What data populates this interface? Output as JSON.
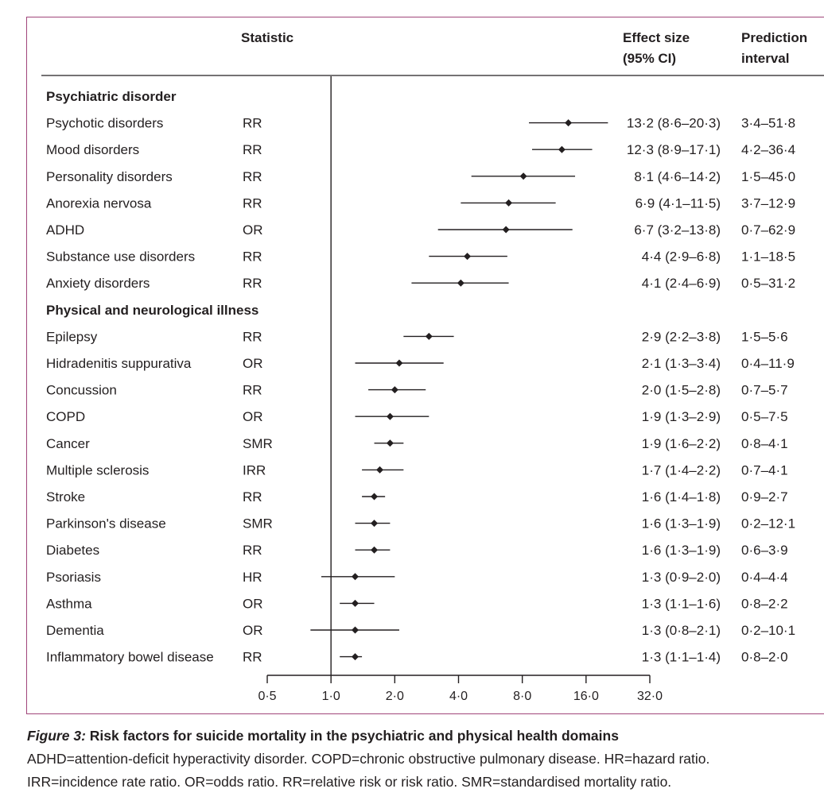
{
  "headers": {
    "statistic": "Statistic",
    "effect_size": [
      "Effect size",
      "(95% CI)"
    ],
    "prediction_interval": [
      "Prediction",
      "interval"
    ]
  },
  "chart_data": {
    "type": "forest",
    "x_scale": "log2",
    "xlim": [
      0.5,
      32
    ],
    "reference_line": 1.0,
    "x_ticks": [
      0.5,
      1,
      2,
      4,
      8,
      16,
      32
    ],
    "x_tick_labels": [
      "0·5",
      "1·0",
      "2·0",
      "4·0",
      "8·0",
      "16·0",
      "32·0"
    ],
    "groups": [
      {
        "title": "Psychiatric disorder",
        "rows": [
          {
            "label": "Psychotic disorders",
            "stat": "RR",
            "est": 13.2,
            "lo": 8.6,
            "hi": 20.3,
            "ci_text": "13·2 (8·6–20·3)",
            "pi_text": "3·4–51·8"
          },
          {
            "label": "Mood disorders",
            "stat": "RR",
            "est": 12.3,
            "lo": 8.9,
            "hi": 17.1,
            "ci_text": "12·3 (8·9–17·1)",
            "pi_text": "4·2–36·4"
          },
          {
            "label": "Personality disorders",
            "stat": "RR",
            "est": 8.1,
            "lo": 4.6,
            "hi": 14.2,
            "ci_text": "8·1 (4·6–14·2)",
            "pi_text": "1·5–45·0"
          },
          {
            "label": "Anorexia nervosa",
            "stat": "RR",
            "est": 6.9,
            "lo": 4.1,
            "hi": 11.5,
            "ci_text": "6·9 (4·1–11·5)",
            "pi_text": "3·7–12·9"
          },
          {
            "label": "ADHD",
            "stat": "OR",
            "est": 6.7,
            "lo": 3.2,
            "hi": 13.8,
            "ci_text": "6·7 (3·2–13·8)",
            "pi_text": "0·7–62·9"
          },
          {
            "label": "Substance use disorders",
            "stat": "RR",
            "est": 4.4,
            "lo": 2.9,
            "hi": 6.8,
            "ci_text": "4·4 (2·9–6·8)",
            "pi_text": "1·1–18·5"
          },
          {
            "label": "Anxiety disorders",
            "stat": "RR",
            "est": 4.1,
            "lo": 2.4,
            "hi": 6.9,
            "ci_text": "4·1 (2·4–6·9)",
            "pi_text": "0·5–31·2"
          }
        ]
      },
      {
        "title": "Physical and neurological illness",
        "rows": [
          {
            "label": "Epilepsy",
            "stat": "RR",
            "est": 2.9,
            "lo": 2.2,
            "hi": 3.8,
            "ci_text": "2·9 (2·2–3·8)",
            "pi_text": "1·5–5·6"
          },
          {
            "label": "Hidradenitis suppurativa",
            "stat": "OR",
            "est": 2.1,
            "lo": 1.3,
            "hi": 3.4,
            "ci_text": "2·1 (1·3–3·4)",
            "pi_text": "0·4–11·9"
          },
          {
            "label": "Concussion",
            "stat": "RR",
            "est": 2.0,
            "lo": 1.5,
            "hi": 2.8,
            "ci_text": "2·0 (1·5–2·8)",
            "pi_text": "0·7–5·7"
          },
          {
            "label": "COPD",
            "stat": "OR",
            "est": 1.9,
            "lo": 1.3,
            "hi": 2.9,
            "ci_text": "1·9 (1·3–2·9)",
            "pi_text": "0·5–7·5"
          },
          {
            "label": "Cancer",
            "stat": "SMR",
            "est": 1.9,
            "lo": 1.6,
            "hi": 2.2,
            "ci_text": "1·9 (1·6–2·2)",
            "pi_text": "0·8–4·1"
          },
          {
            "label": "Multiple sclerosis",
            "stat": "IRR",
            "est": 1.7,
            "lo": 1.4,
            "hi": 2.2,
            "ci_text": "1·7 (1·4–2·2)",
            "pi_text": "0·7–4·1"
          },
          {
            "label": "Stroke",
            "stat": "RR",
            "est": 1.6,
            "lo": 1.4,
            "hi": 1.8,
            "ci_text": "1·6 (1·4–1·8)",
            "pi_text": "0·9–2·7"
          },
          {
            "label": "Parkinson's disease",
            "stat": "SMR",
            "est": 1.6,
            "lo": 1.3,
            "hi": 1.9,
            "ci_text": "1·6 (1·3–1·9)",
            "pi_text": "0·2–12·1"
          },
          {
            "label": "Diabetes",
            "stat": "RR",
            "est": 1.6,
            "lo": 1.3,
            "hi": 1.9,
            "ci_text": "1·6 (1·3–1·9)",
            "pi_text": "0·6–3·9"
          },
          {
            "label": "Psoriasis",
            "stat": "HR",
            "est": 1.3,
            "lo": 0.9,
            "hi": 2.0,
            "ci_text": "1·3 (0·9–2·0)",
            "pi_text": "0·4–4·4"
          },
          {
            "label": "Asthma",
            "stat": "OR",
            "est": 1.3,
            "lo": 1.1,
            "hi": 1.6,
            "ci_text": "1·3 (1·1–1·6)",
            "pi_text": "0·8–2·2"
          },
          {
            "label": "Dementia",
            "stat": "OR",
            "est": 1.3,
            "lo": 0.8,
            "hi": 2.1,
            "ci_text": "1·3 (0·8–2·1)",
            "pi_text": "0·2–10·1"
          },
          {
            "label": "Inflammatory bowel disease",
            "stat": "RR",
            "est": 1.3,
            "lo": 1.1,
            "hi": 1.4,
            "ci_text": "1·3 (1·1–1·4)",
            "pi_text": "0·8–2·0"
          }
        ]
      }
    ]
  },
  "caption": {
    "figure_label": "Figure 3:",
    "title": " Risk factors for suicide mortality in the psychiatric and physical health domains",
    "line1": "ADHD=attention-deficit hyperactivity disorder. COPD=chronic obstructive pulmonary disease. HR=hazard ratio.",
    "line2": "IRR=incidence rate ratio. OR=odds ratio. RR=relative risk or risk ratio. SMR=standardised mortality ratio."
  },
  "colors": {
    "frame": "#a0457a",
    "ink": "#231f20"
  }
}
